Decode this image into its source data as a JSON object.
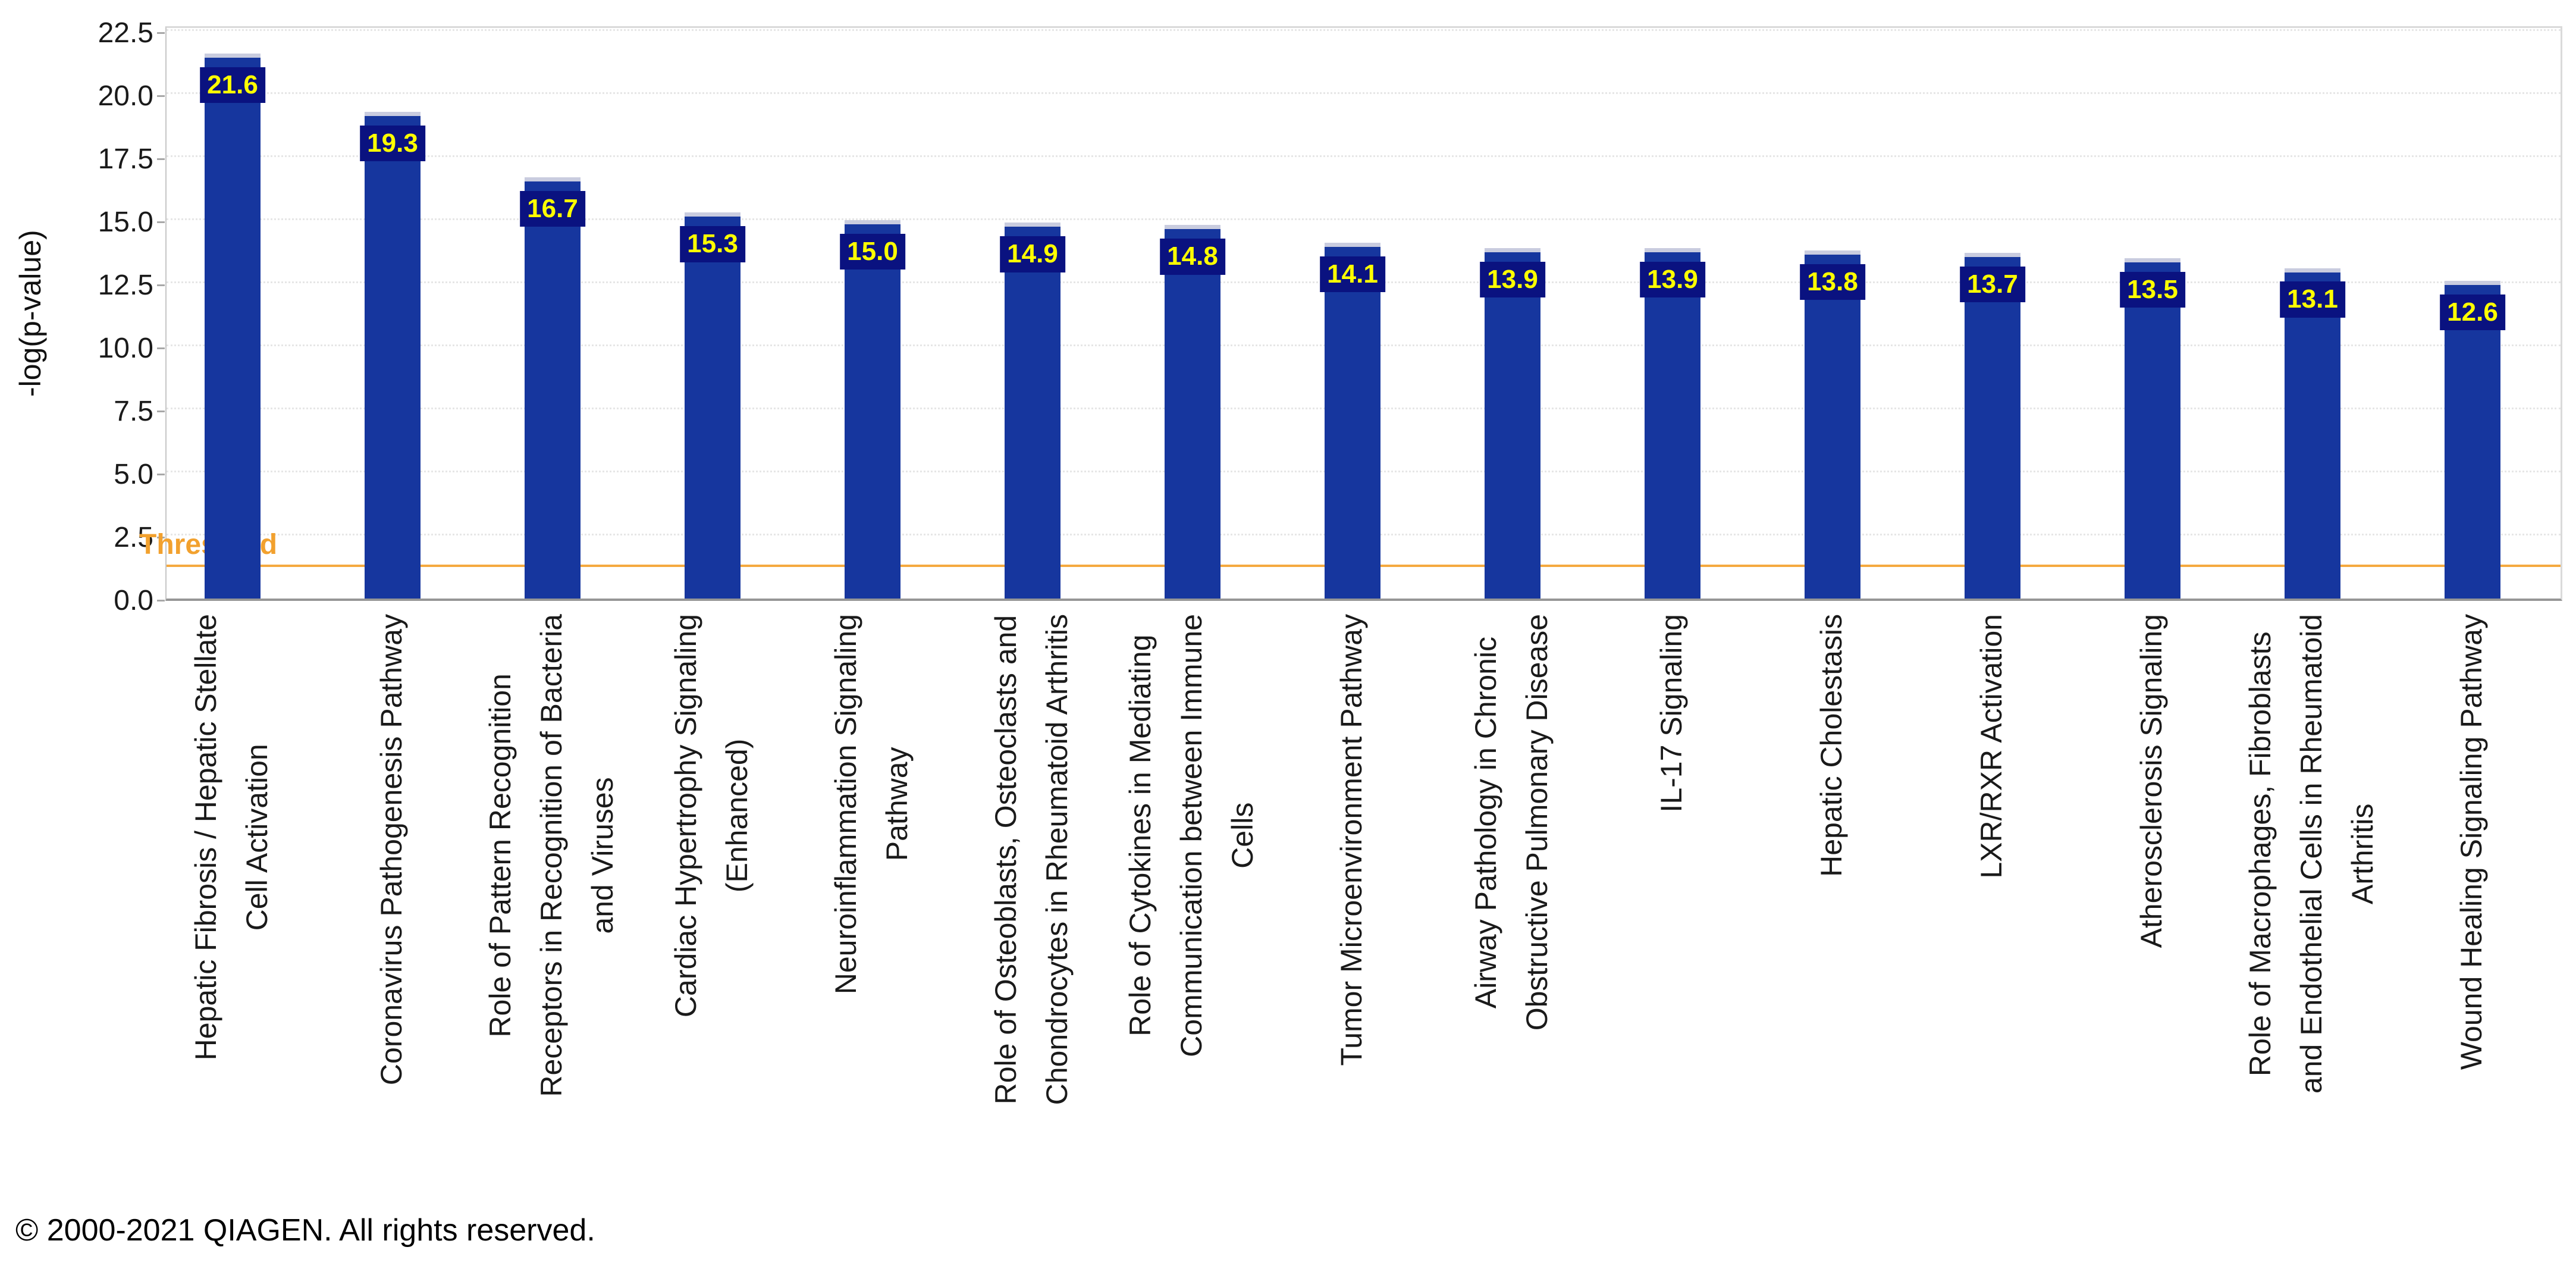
{
  "chart_data": {
    "type": "bar",
    "title": "",
    "ylabel": "-log(p-value)",
    "xlabel": "",
    "categories": [
      "Hepatic Fibrosis / Hepatic Stellate\nCell Activation",
      "Coronavirus Pathogenesis Pathway",
      "Role of Pattern Recognition\nReceptors in Recognition of Bacteria\nand Viruses",
      "Cardiac Hypertrophy Signaling\n(Enhanced)",
      "Neuroinflammation Signaling\nPathway",
      "Role of Osteoblasts, Osteoclasts and\nChondrocytes in Rheumatoid Arthritis",
      "Role of Cytokines in Mediating\nCommunication between Immune\nCells",
      "Tumor Microenvironment Pathway",
      "Airway Pathology in Chronic\nObstructive Pulmonary Disease",
      "IL-17 Signaling",
      "Hepatic Cholestasis",
      "LXR/RXR Activation",
      "Atherosclerosis Signaling",
      "Role of Macrophages, Fibroblasts\nand Endothelial Cells in Rheumatoid\nArthritis",
      "Wound Healing Signaling Pathway"
    ],
    "values": [
      21.6,
      19.3,
      16.7,
      15.3,
      15.0,
      14.9,
      14.8,
      14.1,
      13.9,
      13.9,
      13.8,
      13.7,
      13.5,
      13.1,
      12.6
    ],
    "yticks": [
      22.5,
      20.0,
      17.5,
      15.0,
      12.5,
      10.0,
      7.5,
      5.0,
      2.5,
      0.0
    ],
    "ylim": [
      0,
      22.78
    ],
    "grid": "horizontal-dotted",
    "legend_position": "none",
    "bar_color": "#16369E",
    "bar_label_bg": "#0A1280",
    "bar_label_color": "#FFFF00",
    "threshold": {
      "label": "Threshold",
      "value": 1.3,
      "color": "#F5A93F"
    }
  },
  "footer": {
    "copyright": "© 2000-2021 QIAGEN. All rights reserved."
  }
}
